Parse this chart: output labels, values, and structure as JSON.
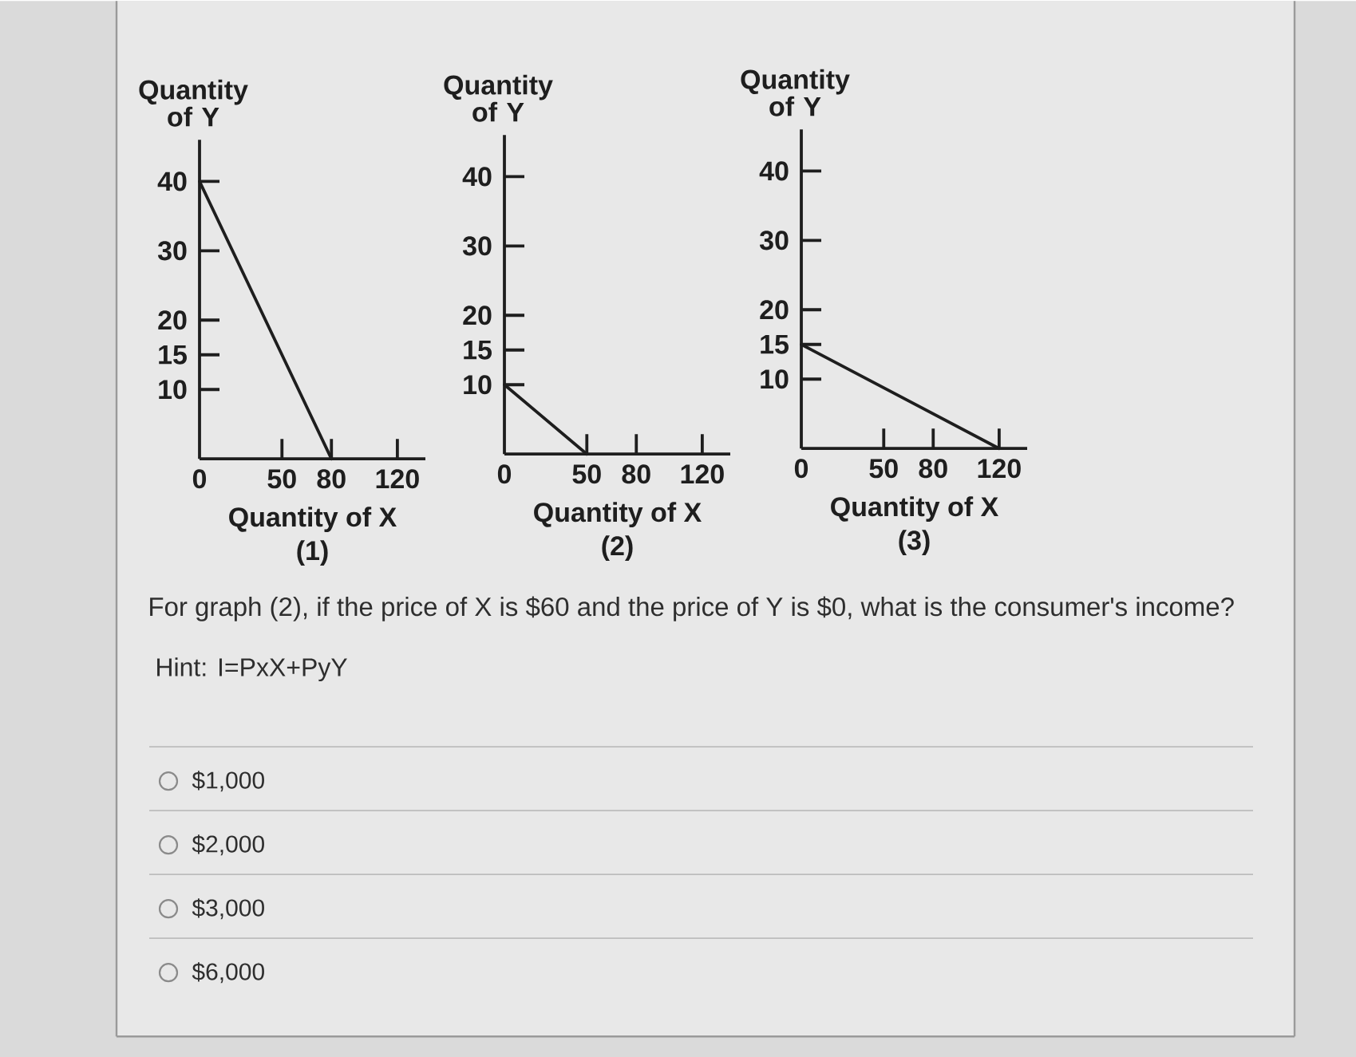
{
  "chart_data": [
    {
      "type": "line",
      "title": "(1)",
      "xlabel": "Quantity of X",
      "ylabel": "Quantity of Y",
      "x": [
        0,
        80
      ],
      "values": [
        40,
        0
      ],
      "color": "#1e1e1e",
      "line_style": "solid",
      "xlim": [
        0,
        137
      ],
      "ylim": [
        0,
        46
      ],
      "xticks": [
        0,
        50,
        80,
        120
      ],
      "yticks": [
        10,
        15,
        20,
        30,
        40
      ]
    },
    {
      "type": "line",
      "title": "(2)",
      "xlabel": "Quantity of X",
      "ylabel": "Quantity of Y",
      "x": [
        0,
        50
      ],
      "values": [
        10,
        0
      ],
      "color": "#1e1e1e",
      "line_style": "solid",
      "xlim": [
        0,
        137
      ],
      "ylim": [
        0,
        46
      ],
      "xticks": [
        0,
        50,
        80,
        120
      ],
      "yticks": [
        10,
        15,
        20,
        30,
        40
      ],
      "annotations": [
        "For graph (2), if the price of X is $60 and the price of Y is $0, what is the consumer's income?",
        "Hint: I=PxX+PyY",
        "$1,000",
        "$2,000",
        "$3,000",
        "$6,000"
      ]
    },
    {
      "type": "line",
      "title": "(3)",
      "xlabel": "Quantity of X",
      "ylabel": "Quantity of Y",
      "x": [
        0,
        120
      ],
      "values": [
        15,
        0
      ],
      "color": "#1e1e1e",
      "line_style": "solid",
      "xlim": [
        0,
        137
      ],
      "ylim": [
        0,
        46
      ],
      "xticks": [
        0,
        50,
        80,
        120
      ],
      "yticks": [
        10,
        15,
        20,
        30,
        40
      ]
    }
  ]
}
